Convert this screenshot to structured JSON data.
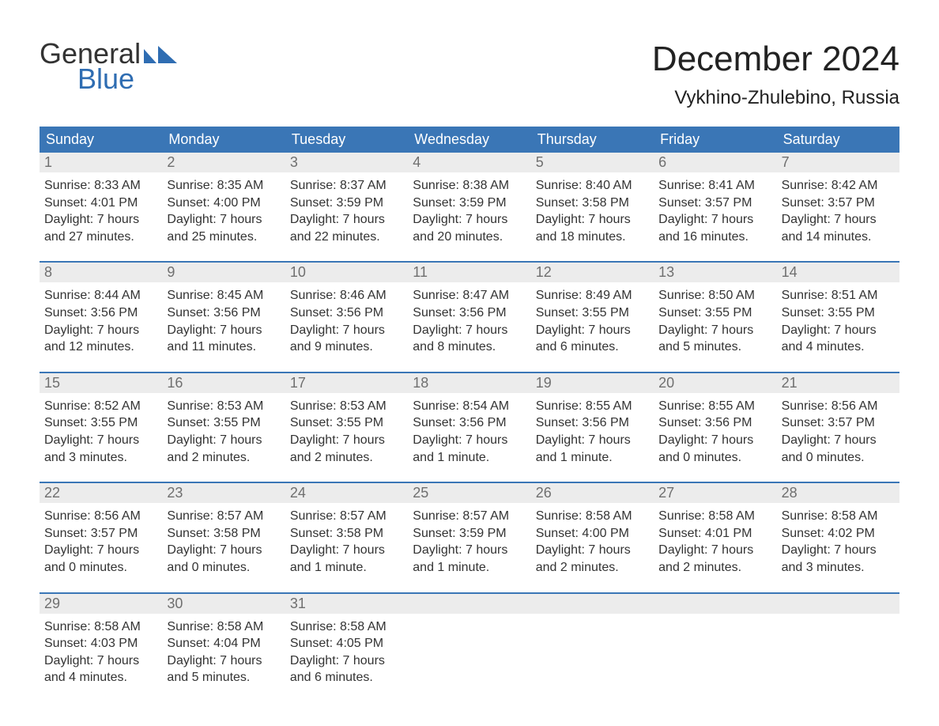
{
  "brand": {
    "word1": "General",
    "word2": "Blue",
    "accent": "#2f6db2"
  },
  "title": "December 2024",
  "location": "Vykhino-Zhulebino, Russia",
  "colors": {
    "header_bg": "#3a76b6",
    "header_text": "#ffffff",
    "daynum_bg": "#ececec",
    "daynum_text": "#6f6f6f",
    "body_text": "#333333",
    "row_divider": "#3a76b6",
    "page_bg": "#ffffff"
  },
  "day_labels": [
    "Sunday",
    "Monday",
    "Tuesday",
    "Wednesday",
    "Thursday",
    "Friday",
    "Saturday"
  ],
  "weeks": [
    [
      {
        "n": "1",
        "sunrise": "Sunrise: 8:33 AM",
        "sunset": "Sunset: 4:01 PM",
        "dl1": "Daylight: 7 hours",
        "dl2": "and 27 minutes."
      },
      {
        "n": "2",
        "sunrise": "Sunrise: 8:35 AM",
        "sunset": "Sunset: 4:00 PM",
        "dl1": "Daylight: 7 hours",
        "dl2": "and 25 minutes."
      },
      {
        "n": "3",
        "sunrise": "Sunrise: 8:37 AM",
        "sunset": "Sunset: 3:59 PM",
        "dl1": "Daylight: 7 hours",
        "dl2": "and 22 minutes."
      },
      {
        "n": "4",
        "sunrise": "Sunrise: 8:38 AM",
        "sunset": "Sunset: 3:59 PM",
        "dl1": "Daylight: 7 hours",
        "dl2": "and 20 minutes."
      },
      {
        "n": "5",
        "sunrise": "Sunrise: 8:40 AM",
        "sunset": "Sunset: 3:58 PM",
        "dl1": "Daylight: 7 hours",
        "dl2": "and 18 minutes."
      },
      {
        "n": "6",
        "sunrise": "Sunrise: 8:41 AM",
        "sunset": "Sunset: 3:57 PM",
        "dl1": "Daylight: 7 hours",
        "dl2": "and 16 minutes."
      },
      {
        "n": "7",
        "sunrise": "Sunrise: 8:42 AM",
        "sunset": "Sunset: 3:57 PM",
        "dl1": "Daylight: 7 hours",
        "dl2": "and 14 minutes."
      }
    ],
    [
      {
        "n": "8",
        "sunrise": "Sunrise: 8:44 AM",
        "sunset": "Sunset: 3:56 PM",
        "dl1": "Daylight: 7 hours",
        "dl2": "and 12 minutes."
      },
      {
        "n": "9",
        "sunrise": "Sunrise: 8:45 AM",
        "sunset": "Sunset: 3:56 PM",
        "dl1": "Daylight: 7 hours",
        "dl2": "and 11 minutes."
      },
      {
        "n": "10",
        "sunrise": "Sunrise: 8:46 AM",
        "sunset": "Sunset: 3:56 PM",
        "dl1": "Daylight: 7 hours",
        "dl2": "and 9 minutes."
      },
      {
        "n": "11",
        "sunrise": "Sunrise: 8:47 AM",
        "sunset": "Sunset: 3:56 PM",
        "dl1": "Daylight: 7 hours",
        "dl2": "and 8 minutes."
      },
      {
        "n": "12",
        "sunrise": "Sunrise: 8:49 AM",
        "sunset": "Sunset: 3:55 PM",
        "dl1": "Daylight: 7 hours",
        "dl2": "and 6 minutes."
      },
      {
        "n": "13",
        "sunrise": "Sunrise: 8:50 AM",
        "sunset": "Sunset: 3:55 PM",
        "dl1": "Daylight: 7 hours",
        "dl2": "and 5 minutes."
      },
      {
        "n": "14",
        "sunrise": "Sunrise: 8:51 AM",
        "sunset": "Sunset: 3:55 PM",
        "dl1": "Daylight: 7 hours",
        "dl2": "and 4 minutes."
      }
    ],
    [
      {
        "n": "15",
        "sunrise": "Sunrise: 8:52 AM",
        "sunset": "Sunset: 3:55 PM",
        "dl1": "Daylight: 7 hours",
        "dl2": "and 3 minutes."
      },
      {
        "n": "16",
        "sunrise": "Sunrise: 8:53 AM",
        "sunset": "Sunset: 3:55 PM",
        "dl1": "Daylight: 7 hours",
        "dl2": "and 2 minutes."
      },
      {
        "n": "17",
        "sunrise": "Sunrise: 8:53 AM",
        "sunset": "Sunset: 3:55 PM",
        "dl1": "Daylight: 7 hours",
        "dl2": "and 2 minutes."
      },
      {
        "n": "18",
        "sunrise": "Sunrise: 8:54 AM",
        "sunset": "Sunset: 3:56 PM",
        "dl1": "Daylight: 7 hours",
        "dl2": "and 1 minute."
      },
      {
        "n": "19",
        "sunrise": "Sunrise: 8:55 AM",
        "sunset": "Sunset: 3:56 PM",
        "dl1": "Daylight: 7 hours",
        "dl2": "and 1 minute."
      },
      {
        "n": "20",
        "sunrise": "Sunrise: 8:55 AM",
        "sunset": "Sunset: 3:56 PM",
        "dl1": "Daylight: 7 hours",
        "dl2": "and 0 minutes."
      },
      {
        "n": "21",
        "sunrise": "Sunrise: 8:56 AM",
        "sunset": "Sunset: 3:57 PM",
        "dl1": "Daylight: 7 hours",
        "dl2": "and 0 minutes."
      }
    ],
    [
      {
        "n": "22",
        "sunrise": "Sunrise: 8:56 AM",
        "sunset": "Sunset: 3:57 PM",
        "dl1": "Daylight: 7 hours",
        "dl2": "and 0 minutes."
      },
      {
        "n": "23",
        "sunrise": "Sunrise: 8:57 AM",
        "sunset": "Sunset: 3:58 PM",
        "dl1": "Daylight: 7 hours",
        "dl2": "and 0 minutes."
      },
      {
        "n": "24",
        "sunrise": "Sunrise: 8:57 AM",
        "sunset": "Sunset: 3:58 PM",
        "dl1": "Daylight: 7 hours",
        "dl2": "and 1 minute."
      },
      {
        "n": "25",
        "sunrise": "Sunrise: 8:57 AM",
        "sunset": "Sunset: 3:59 PM",
        "dl1": "Daylight: 7 hours",
        "dl2": "and 1 minute."
      },
      {
        "n": "26",
        "sunrise": "Sunrise: 8:58 AM",
        "sunset": "Sunset: 4:00 PM",
        "dl1": "Daylight: 7 hours",
        "dl2": "and 2 minutes."
      },
      {
        "n": "27",
        "sunrise": "Sunrise: 8:58 AM",
        "sunset": "Sunset: 4:01 PM",
        "dl1": "Daylight: 7 hours",
        "dl2": "and 2 minutes."
      },
      {
        "n": "28",
        "sunrise": "Sunrise: 8:58 AM",
        "sunset": "Sunset: 4:02 PM",
        "dl1": "Daylight: 7 hours",
        "dl2": "and 3 minutes."
      }
    ],
    [
      {
        "n": "29",
        "sunrise": "Sunrise: 8:58 AM",
        "sunset": "Sunset: 4:03 PM",
        "dl1": "Daylight: 7 hours",
        "dl2": "and 4 minutes."
      },
      {
        "n": "30",
        "sunrise": "Sunrise: 8:58 AM",
        "sunset": "Sunset: 4:04 PM",
        "dl1": "Daylight: 7 hours",
        "dl2": "and 5 minutes."
      },
      {
        "n": "31",
        "sunrise": "Sunrise: 8:58 AM",
        "sunset": "Sunset: 4:05 PM",
        "dl1": "Daylight: 7 hours",
        "dl2": "and 6 minutes."
      },
      null,
      null,
      null,
      null
    ]
  ]
}
